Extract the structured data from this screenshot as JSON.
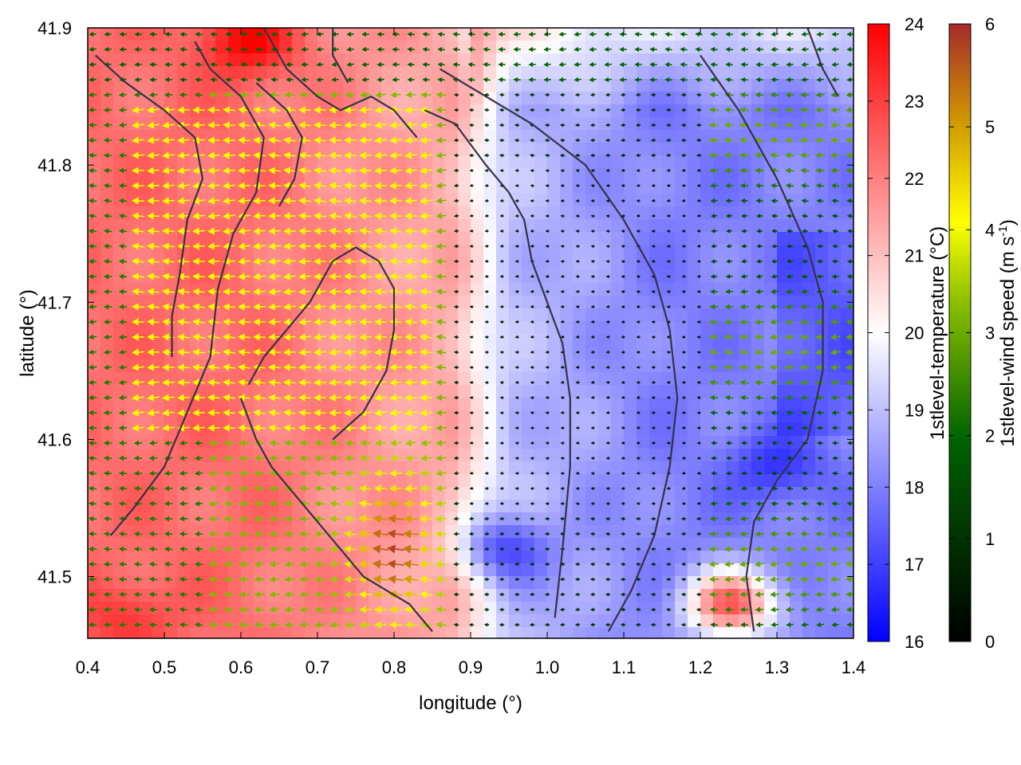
{
  "chart_data": {
    "type": "heatmap",
    "title": "",
    "xlabel": "longitude (°)",
    "ylabel": "latitude (°)",
    "xlim": [
      0.4,
      1.4
    ],
    "ylim": [
      41.455,
      41.9
    ],
    "x_ticks": [
      "0.4",
      "0.5",
      "0.6",
      "0.7",
      "0.8",
      "0.9",
      "1.0",
      "1.1",
      "1.2",
      "1.3",
      "1.4"
    ],
    "y_ticks": [
      "41.5",
      "41.6",
      "41.7",
      "41.8",
      "41.9"
    ],
    "x_tick_values": [
      0.4,
      0.5,
      0.6,
      0.7,
      0.8,
      0.9,
      1.0,
      1.1,
      1.2,
      1.3,
      1.4
    ],
    "y_tick_values": [
      41.5,
      41.6,
      41.7,
      41.8,
      41.9
    ],
    "colorbars": [
      {
        "label": "1stlevel-temperature (°C)",
        "range": [
          16,
          24
        ],
        "ticks": [
          "16",
          "17",
          "18",
          "19",
          "20",
          "21",
          "22",
          "23",
          "24"
        ],
        "colors": [
          "#0000ff",
          "#ffffff",
          "#ff0000"
        ]
      },
      {
        "label_main": "1stlevel-wind speed (m s",
        "label_sup": "-1",
        "label_end": ")",
        "range": [
          0,
          6
        ],
        "ticks": [
          "0",
          "1",
          "2",
          "3",
          "4",
          "5",
          "6"
        ],
        "colors": [
          "#000000",
          "#006400",
          "#7fbf00",
          "#ffff00",
          "#d4a000",
          "#a52a2a"
        ]
      }
    ],
    "temperature_field": {
      "description_regions": [
        {
          "lon": [
            0.4,
            0.6
          ],
          "lat": [
            41.455,
            41.9
          ],
          "temp": 22.3
        },
        {
          "lon": [
            0.6,
            0.9
          ],
          "lat": [
            41.455,
            41.9
          ],
          "temp": 21.3
        },
        {
          "lon": [
            0.9,
            1.05
          ],
          "lat": [
            41.455,
            41.9
          ],
          "temp": 19.0
        },
        {
          "lon": [
            1.05,
            1.4
          ],
          "lat": [
            41.455,
            41.9
          ],
          "temp": 18.0
        }
      ],
      "hot_spots": [
        {
          "lon": 0.61,
          "lat": 41.89,
          "temp": 24
        },
        {
          "lon": 0.45,
          "lat": 41.47,
          "temp": 23.2
        },
        {
          "lon": 1.24,
          "lat": 41.48,
          "temp": 22.5
        }
      ],
      "cold_spots": [
        {
          "lon": 1.3,
          "lat": 41.58,
          "temp": 16.8
        },
        {
          "lon": 0.95,
          "lat": 41.52,
          "temp": 17.2
        }
      ]
    },
    "wind_field": {
      "direction": "westward",
      "strong_core": {
        "lon": 0.8,
        "lat": 41.52,
        "speed": 5.8
      },
      "yellow_band": {
        "lon": [
          0.45,
          0.85
        ],
        "lat": [
          41.6,
          41.85
        ],
        "speed": 4.0
      },
      "weak_region": {
        "lon": [
          0.9,
          1.2
        ],
        "lat": [
          41.55,
          41.8
        ],
        "speed": 0.6
      },
      "northern_band": {
        "lat": [
          41.86,
          41.9
        ],
        "speed": 2.0
      }
    },
    "contour_lines": [
      [
        [
          0.54,
          41.89
        ],
        [
          0.56,
          41.87
        ],
        [
          0.6,
          41.85
        ],
        [
          0.63,
          41.82
        ],
        [
          0.62,
          41.78
        ],
        [
          0.59,
          41.75
        ],
        [
          0.57,
          41.71
        ],
        [
          0.56,
          41.66
        ],
        [
          0.53,
          41.62
        ],
        [
          0.5,
          41.58
        ],
        [
          0.46,
          41.55
        ],
        [
          0.43,
          41.53
        ]
      ],
      [
        [
          0.41,
          41.88
        ],
        [
          0.45,
          41.86
        ],
        [
          0.5,
          41.84
        ],
        [
          0.54,
          41.82
        ],
        [
          0.55,
          41.79
        ],
        [
          0.53,
          41.76
        ],
        [
          0.52,
          41.72
        ],
        [
          0.51,
          41.69
        ],
        [
          0.51,
          41.66
        ]
      ],
      [
        [
          0.63,
          41.9
        ],
        [
          0.66,
          41.87
        ],
        [
          0.7,
          41.85
        ],
        [
          0.73,
          41.84
        ],
        [
          0.77,
          41.85
        ],
        [
          0.8,
          41.84
        ],
        [
          0.83,
          41.82
        ]
      ],
      [
        [
          0.72,
          41.9
        ],
        [
          0.72,
          41.88
        ],
        [
          0.74,
          41.86
        ]
      ],
      [
        [
          0.6,
          41.63
        ],
        [
          0.62,
          41.6
        ],
        [
          0.64,
          41.58
        ],
        [
          0.67,
          41.56
        ],
        [
          0.7,
          41.54
        ],
        [
          0.73,
          41.52
        ],
        [
          0.76,
          41.5
        ],
        [
          0.79,
          41.49
        ],
        [
          0.82,
          41.48
        ],
        [
          0.85,
          41.46
        ]
      ],
      [
        [
          0.72,
          41.6
        ],
        [
          0.76,
          41.62
        ],
        [
          0.79,
          41.65
        ],
        [
          0.8,
          41.68
        ],
        [
          0.8,
          41.71
        ],
        [
          0.78,
          41.73
        ],
        [
          0.75,
          41.74
        ],
        [
          0.72,
          41.73
        ],
        [
          0.69,
          41.7
        ],
        [
          0.66,
          41.68
        ],
        [
          0.63,
          41.66
        ],
        [
          0.61,
          41.64
        ]
      ],
      [
        [
          0.84,
          41.84
        ],
        [
          0.88,
          41.83
        ],
        [
          0.92,
          41.8
        ],
        [
          0.95,
          41.78
        ],
        [
          0.97,
          41.76
        ],
        [
          0.98,
          41.73
        ],
        [
          1.0,
          41.7
        ],
        [
          1.02,
          41.67
        ],
        [
          1.03,
          41.63
        ],
        [
          1.03,
          41.58
        ],
        [
          1.02,
          41.52
        ],
        [
          1.01,
          41.47
        ]
      ],
      [
        [
          0.86,
          41.87
        ],
        [
          0.92,
          41.85
        ],
        [
          0.98,
          41.83
        ],
        [
          1.05,
          41.8
        ],
        [
          1.1,
          41.76
        ],
        [
          1.14,
          41.72
        ],
        [
          1.16,
          41.68
        ],
        [
          1.17,
          41.63
        ],
        [
          1.16,
          41.58
        ],
        [
          1.14,
          41.53
        ],
        [
          1.11,
          41.49
        ],
        [
          1.08,
          41.46
        ]
      ],
      [
        [
          1.2,
          41.88
        ],
        [
          1.25,
          41.84
        ],
        [
          1.3,
          41.79
        ],
        [
          1.34,
          41.74
        ],
        [
          1.36,
          41.7
        ],
        [
          1.36,
          41.65
        ],
        [
          1.34,
          41.6
        ],
        [
          1.3,
          41.57
        ],
        [
          1.27,
          41.54
        ],
        [
          1.26,
          41.5
        ],
        [
          1.27,
          41.46
        ]
      ],
      [
        [
          1.34,
          41.9
        ],
        [
          1.36,
          41.87
        ],
        [
          1.38,
          41.85
        ]
      ],
      [
        [
          0.62,
          41.86
        ],
        [
          0.66,
          41.84
        ],
        [
          0.68,
          41.82
        ],
        [
          0.67,
          41.79
        ],
        [
          0.65,
          41.77
        ]
      ]
    ]
  }
}
